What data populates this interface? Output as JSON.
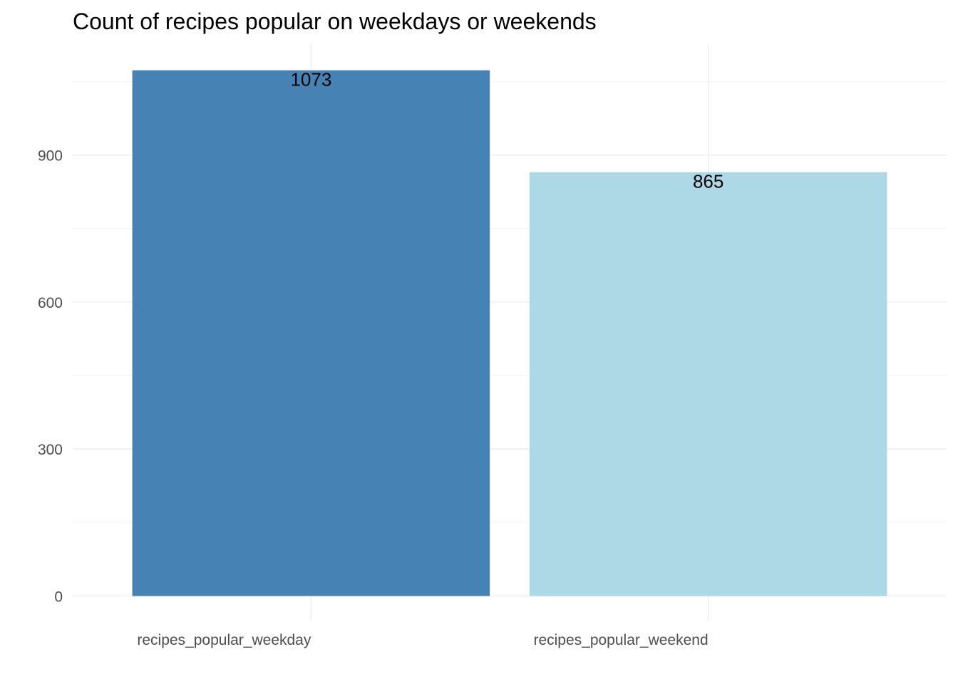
{
  "chart_data": {
    "type": "bar",
    "title": "Count of recipes popular on weekdays or weekends",
    "xlabel": "",
    "ylabel": "",
    "categories": [
      "recipes_popular_weekday",
      "recipes_popular_weekend"
    ],
    "values": [
      1073,
      865
    ],
    "data_labels": [
      "1073",
      "865"
    ],
    "colors": [
      "#4682b4",
      "#add8e6"
    ],
    "ylim": [
      0,
      1073
    ],
    "yticks": [
      0,
      300,
      600,
      900
    ],
    "ytick_labels": [
      "0",
      "300",
      "600",
      "900"
    ],
    "grid": true,
    "legend": "none"
  }
}
